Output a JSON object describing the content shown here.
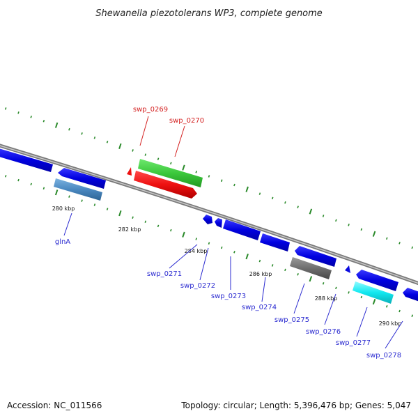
{
  "title": "Shewanella piezotolerans WP3, complete genome",
  "footer": {
    "accession": "Accession: NC_011566",
    "summary": "Topology: circular; Length: 5,396,476 bp; Genes: 5,047"
  },
  "colors": {
    "backbone": "#8c8c8c",
    "tick": "#2a8a2a",
    "forward_gene": "#0a0adf",
    "label_blue": "#2a2ad0",
    "label_red": "#d42020",
    "rRNA_green": "#3ec83e",
    "red_gene": "#ee1111",
    "steelblue_gene": "#4a88c0",
    "grey_gene": "#6e6e6e",
    "cyan_gene": "#11e8f0"
  },
  "scale_labels": [
    {
      "text": "280 kbp"
    },
    {
      "text": "282 kbp"
    },
    {
      "text": "284 kbp"
    },
    {
      "text": "286 kbp"
    },
    {
      "text": "288 kbp"
    },
    {
      "text": "290 kbp"
    }
  ],
  "genes": [
    {
      "label": "glnA",
      "strand": "+",
      "kind": "steelblue"
    },
    {
      "label": "swp_0269",
      "strand": "+",
      "kind": "rRNA_green"
    },
    {
      "label": "swp_0270",
      "strand": "+",
      "kind": "red"
    },
    {
      "label": "swp_0271",
      "strand": "-",
      "kind": "blue"
    },
    {
      "label": "swp_0272",
      "strand": "-",
      "kind": "blue"
    },
    {
      "label": "swp_0273",
      "strand": "-",
      "kind": "blue"
    },
    {
      "label": "swp_0274",
      "strand": "-",
      "kind": "blue"
    },
    {
      "label": "swp_0275",
      "strand": "-",
      "kind": "blue"
    },
    {
      "label": "swp_0276",
      "strand": "-",
      "kind": "grey"
    },
    {
      "label": "swp_0277",
      "strand": "-",
      "kind": "blue"
    },
    {
      "label": "swp_0278",
      "strand": "-",
      "kind": "blue"
    }
  ]
}
